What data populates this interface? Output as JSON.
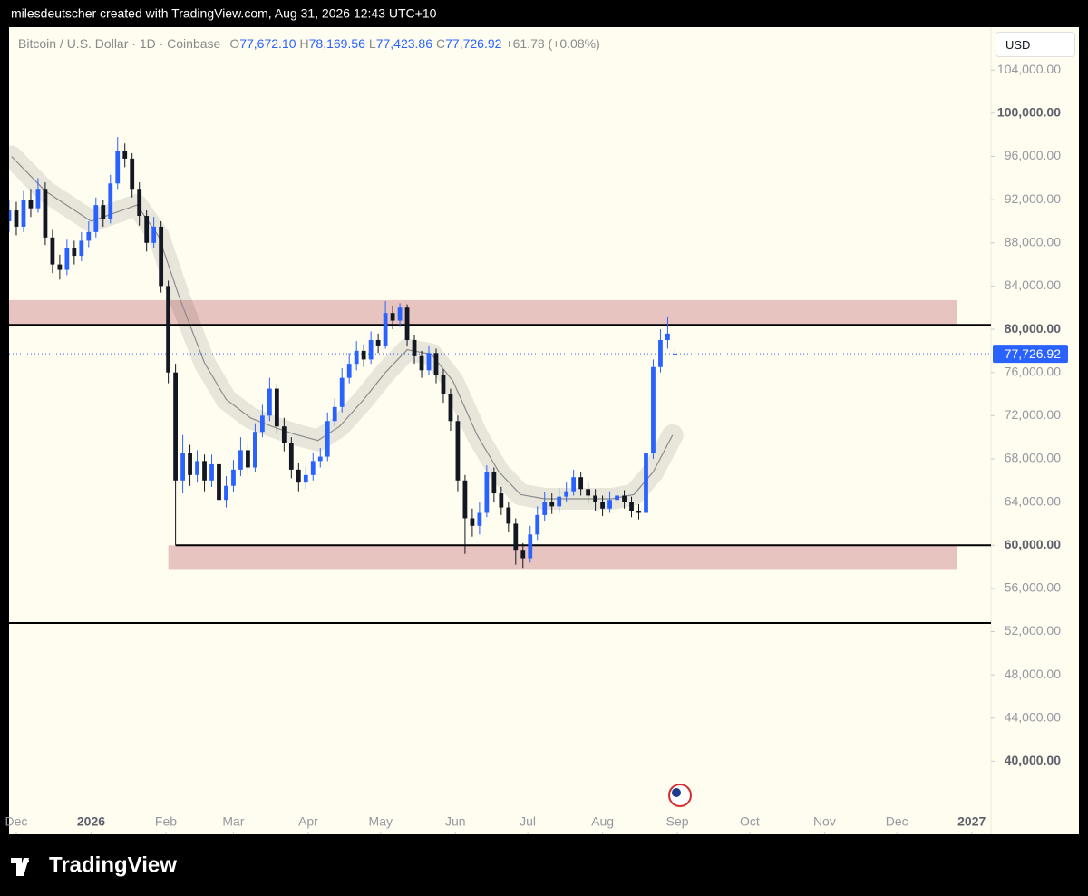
{
  "header": {
    "attribution": "milesdeutscher created with TradingView.com, Aug 31, 2026 12:43 UTC+10",
    "symbol": "Bitcoin / U.S. Dollar · 1D · Coinbase",
    "ohlc": [
      {
        "key": "O",
        "value": 77672.1,
        "label": "77,672.10"
      },
      {
        "key": "H",
        "value": 78169.56,
        "label": "78,169.56"
      },
      {
        "key": "L",
        "value": 77423.86,
        "label": "77,423.86"
      },
      {
        "key": "C",
        "value": 77726.92,
        "label": "77,726.92"
      }
    ],
    "change": "+61.78 (+0.08%)",
    "currency": "USD",
    "brand": "TradingView"
  },
  "chart_data": {
    "type": "candlestick",
    "x": [
      -3,
      0,
      3,
      6,
      9,
      12,
      15,
      18,
      21,
      24,
      27,
      30,
      33,
      36,
      39,
      42,
      45,
      48,
      51,
      54,
      57,
      60,
      63,
      66,
      69,
      72,
      75,
      78,
      81,
      84,
      87,
      90,
      93,
      96,
      99,
      102,
      105,
      108,
      111,
      114,
      117,
      120,
      123,
      126,
      129,
      132,
      135,
      138,
      141,
      144,
      147,
      150,
      153,
      156,
      159,
      162,
      165,
      168,
      171,
      174,
      177,
      180,
      183,
      186,
      189,
      192,
      195,
      198,
      201,
      204,
      207,
      210,
      213,
      216,
      219,
      222,
      225,
      228,
      231,
      234,
      237,
      240,
      243,
      246,
      249,
      252,
      255,
      258,
      261,
      264,
      267,
      270,
      273
    ],
    "open": [
      90000,
      91000,
      89500,
      92000,
      91200,
      93000,
      88500,
      86000,
      85500,
      87500,
      86800,
      88200,
      89000,
      91500,
      90200,
      93500,
      96500,
      95800,
      93000,
      90500,
      88000,
      89500,
      84000,
      76000,
      66000,
      68500,
      66500,
      67800,
      66000,
      67500,
      64200,
      65500,
      67000,
      68800,
      67200,
      70500,
      72000,
      74500,
      71000,
      69500,
      67000,
      65800,
      66500,
      67800,
      68200,
      71500,
      72800,
      75500,
      76800,
      78000,
      77200,
      79000,
      78500,
      81500,
      80800,
      82000,
      79000,
      77500,
      76200,
      77800,
      75800,
      74000,
      71500,
      66000,
      62500,
      61800,
      63000,
      66800,
      64800,
      63500,
      62000,
      59500,
      58800,
      61000,
      62800,
      64000,
      63600,
      64500,
      65000,
      66300,
      65200,
      64600,
      64000,
      63400,
      64200,
      64600,
      64000,
      63200,
      63000,
      68500,
      76500,
      79000,
      77672.1
    ],
    "high": [
      92000,
      91800,
      92800,
      93000,
      94000,
      93600,
      89200,
      86900,
      88300,
      88200,
      89000,
      90000,
      92200,
      92000,
      94300,
      97800,
      97200,
      96300,
      93600,
      91000,
      90400,
      90000,
      84500,
      76800,
      70200,
      69300,
      68800,
      68400,
      68400,
      68000,
      66400,
      67900,
      70000,
      69400,
      71300,
      73000,
      75500,
      75000,
      71800,
      70000,
      67600,
      67300,
      68600,
      69000,
      72300,
      73600,
      76400,
      77800,
      78900,
      78600,
      79800,
      79600,
      82600,
      82200,
      82400,
      82300,
      79500,
      78000,
      78500,
      78200,
      76300,
      74500,
      72000,
      66500,
      63400,
      64000,
      67400,
      67200,
      65400,
      64000,
      62500,
      60200,
      61800,
      63600,
      64900,
      64800,
      65300,
      65800,
      67000,
      66800,
      65900,
      65200,
      64600,
      65000,
      65400,
      65100,
      64500,
      63800,
      69200,
      77200,
      80000,
      81200,
      78169.56
    ],
    "low": [
      89000,
      88700,
      89000,
      90400,
      90800,
      87800,
      85200,
      84600,
      85000,
      86000,
      86300,
      87600,
      88500,
      89500,
      89800,
      93000,
      95000,
      92200,
      89600,
      87200,
      87500,
      83400,
      75000,
      60000,
      64800,
      65500,
      65800,
      65000,
      65400,
      62800,
      63500,
      64900,
      66400,
      66500,
      66800,
      70000,
      71500,
      70300,
      68700,
      66200,
      65000,
      65200,
      66000,
      67200,
      67800,
      71000,
      72300,
      75000,
      76200,
      76500,
      76800,
      77800,
      78200,
      80000,
      80200,
      78400,
      76800,
      75500,
      75800,
      75000,
      73200,
      70600,
      65000,
      59200,
      60800,
      61000,
      62600,
      64000,
      62800,
      61200,
      58200,
      57900,
      58400,
      60500,
      62200,
      62900,
      63000,
      64000,
      64600,
      64600,
      63900,
      63200,
      62700,
      63000,
      63800,
      63400,
      62600,
      62400,
      62800,
      68000,
      76000,
      78200,
      77423.86
    ],
    "close": [
      91000,
      89500,
      92000,
      91200,
      93000,
      88500,
      86000,
      85500,
      87500,
      86800,
      88200,
      89000,
      91500,
      90200,
      93500,
      96500,
      95800,
      93000,
      90500,
      88000,
      89500,
      84000,
      76000,
      66000,
      68500,
      66500,
      67800,
      66000,
      67500,
      64200,
      65500,
      67000,
      68800,
      67200,
      70500,
      72000,
      74500,
      71000,
      69500,
      67000,
      65800,
      66500,
      67800,
      68200,
      71500,
      72800,
      75500,
      76800,
      78000,
      77200,
      79000,
      78500,
      81500,
      80800,
      82000,
      79000,
      77500,
      76200,
      77800,
      75800,
      74000,
      71500,
      66000,
      62500,
      61800,
      63000,
      66800,
      64800,
      63500,
      62000,
      59500,
      58800,
      61000,
      62800,
      64000,
      63600,
      64500,
      65000,
      66300,
      65200,
      64600,
      64000,
      63400,
      64200,
      64600,
      64000,
      63200,
      63000,
      68500,
      76500,
      79000,
      79600,
      77726.92
    ],
    "up_color": "#2962ff",
    "down_color": "#131722",
    "moving_average": {
      "x": [
        -2,
        12,
        31,
        50,
        59,
        68,
        78,
        87,
        97,
        106,
        115,
        125,
        134,
        144,
        153,
        162,
        172,
        181,
        191,
        200,
        209,
        219,
        228,
        238,
        247,
        256,
        264,
        272
      ],
      "values": [
        96000,
        92800,
        90000,
        91500,
        88600,
        82700,
        76900,
        73500,
        71800,
        71000,
        70300,
        69700,
        71000,
        73500,
        76000,
        78100,
        77700,
        75200,
        70200,
        66800,
        64700,
        64300,
        64300,
        64300,
        64300,
        64700,
        66800,
        70200
      ],
      "color": "#8c8c8c"
    },
    "zones": [
      {
        "from": 80400,
        "to": 82700,
        "x": [
          -3,
          390
        ],
        "color": "#e8c4c0"
      },
      {
        "from": 57800,
        "to": 60000,
        "x": [
          63,
          390
        ],
        "color": "#e8c4c0"
      }
    ],
    "levels": [
      {
        "value": 80400,
        "x": [
          -3,
          404
        ]
      },
      {
        "value": 60000,
        "x": [
          66,
          404
        ]
      },
      {
        "value": 52800,
        "x": [
          -3,
          404
        ]
      }
    ],
    "last_price": {
      "value": 77726.92,
      "label": "77,726.92"
    },
    "xlim": [
      -3,
      404
    ],
    "xticks": [
      {
        "value": 0,
        "label": "Dec"
      },
      {
        "value": 31,
        "label": "2026"
      },
      {
        "value": 62,
        "label": "Feb"
      },
      {
        "value": 90,
        "label": "Mar"
      },
      {
        "value": 121,
        "label": "Apr"
      },
      {
        "value": 151,
        "label": "May"
      },
      {
        "value": 182,
        "label": "Jun"
      },
      {
        "value": 212,
        "label": "Jul"
      },
      {
        "value": 243,
        "label": "Aug"
      },
      {
        "value": 274,
        "label": "Sep"
      },
      {
        "value": 304,
        "label": "Oct"
      },
      {
        "value": 335,
        "label": "Nov"
      },
      {
        "value": 365,
        "label": "Dec"
      },
      {
        "value": 396,
        "label": "2027"
      }
    ],
    "ylim": [
      35500,
      107800
    ],
    "yticks": [
      {
        "value": 40000,
        "label": "40,000.00"
      },
      {
        "value": 44000,
        "label": "44,000.00"
      },
      {
        "value": 48000,
        "label": "48,000.00"
      },
      {
        "value": 52000,
        "label": "52,000.00"
      },
      {
        "value": 56000,
        "label": "56,000.00"
      },
      {
        "value": 60000,
        "label": "60,000.00"
      },
      {
        "value": 64000,
        "label": "64,000.00"
      },
      {
        "value": 68000,
        "label": "68,000.00"
      },
      {
        "value": 72000,
        "label": "72,000.00"
      },
      {
        "value": 76000,
        "label": "76,000.00"
      },
      {
        "value": 80000,
        "label": "80,000.00"
      },
      {
        "value": 84000,
        "label": "84,000.00"
      },
      {
        "value": 88000,
        "label": "88,000.00"
      },
      {
        "value": 92000,
        "label": "92,000.00"
      },
      {
        "value": 96000,
        "label": "96,000.00"
      },
      {
        "value": 100000,
        "label": "100,000.00"
      },
      {
        "value": 104000,
        "label": "104,000.00"
      }
    ]
  }
}
